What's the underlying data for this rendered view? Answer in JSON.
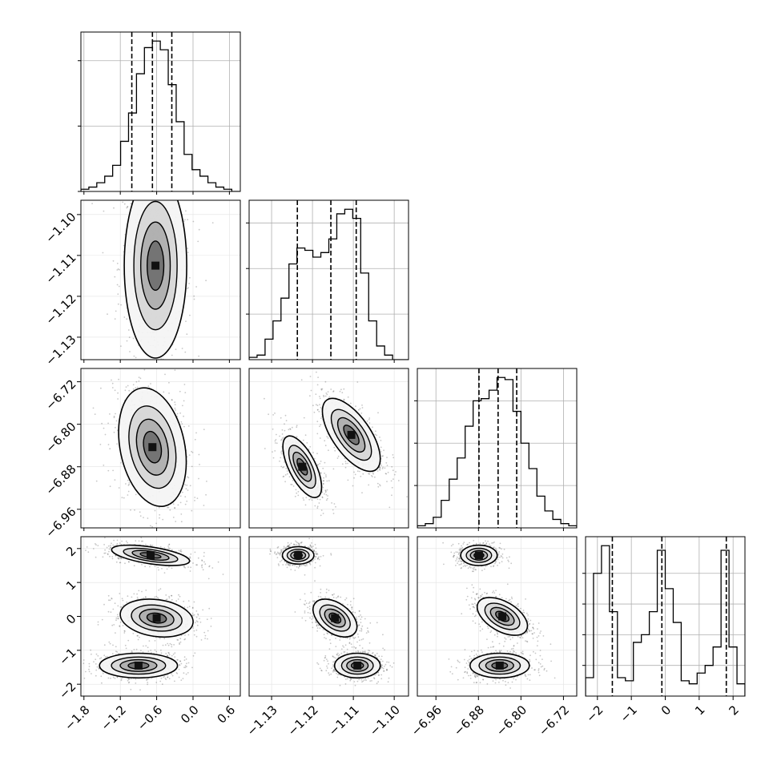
{
  "chart_data": {
    "type": "corner",
    "colors": {
      "line": "#000000",
      "grid": "#b0b0b0",
      "density": "#000000",
      "background": "#ffffff"
    },
    "grid": true,
    "parameters": [
      {
        "ticks": [
          -1.8,
          -1.2,
          -0.6,
          0.0,
          0.6
        ],
        "tick_labels": [
          "−1.8",
          "−1.2",
          "−0.6",
          "0.0",
          "0.6"
        ],
        "range": [
          -1.85,
          0.78
        ],
        "quantiles": [
          -1.01,
          -0.67,
          -0.35
        ],
        "histogram": {
          "edges_start": -1.85,
          "bin_width": 0.131,
          "counts": [
            1,
            2,
            4,
            7,
            12,
            23,
            36,
            54,
            66,
            69,
            65,
            49,
            32,
            17,
            10,
            7,
            4,
            2,
            1,
            0
          ],
          "hist_ticks": [
            0,
            30,
            60
          ]
        }
      },
      {
        "ticks": [
          -1.13,
          -1.12,
          -1.11,
          -1.1
        ],
        "tick_labels": [
          "−1.13",
          "−1.12",
          "−1.11",
          "−1.10"
        ],
        "range": [
          -1.1355,
          -1.0965
        ],
        "quantiles": [
          -1.1237,
          -1.1155,
          -1.1093
        ],
        "histogram": {
          "edges_start": -1.1355,
          "bin_width": 0.00195,
          "counts": [
            1,
            2,
            9,
            17,
            27,
            42,
            49,
            48,
            45,
            47,
            53,
            64,
            66,
            62,
            38,
            17,
            6,
            2,
            0,
            0
          ],
          "hist_ticks": [
            20,
            40,
            60
          ]
        }
      },
      {
        "ticks": [
          -6.96,
          -6.88,
          -6.8,
          -6.72
        ],
        "tick_labels": [
          "−6.96",
          "−6.88",
          "−6.80",
          "−6.72"
        ],
        "range": [
          -6.995,
          -6.695
        ],
        "quantiles": [
          -6.879,
          -6.843,
          -6.808
        ],
        "histogram": {
          "edges_start": -6.995,
          "bin_width": 0.015,
          "counts": [
            1,
            2,
            5,
            13,
            23,
            33,
            48,
            60,
            61,
            65,
            71,
            70,
            55,
            40,
            28,
            15,
            8,
            4,
            2,
            1
          ],
          "hist_ticks": [
            20,
            40,
            60
          ]
        }
      },
      {
        "ticks": [
          -2,
          -1,
          0,
          1,
          2
        ],
        "tick_labels": [
          "−2",
          "−1",
          "0",
          "1",
          "2"
        ],
        "range": [
          -2.35,
          2.35
        ],
        "quantiles": [
          -1.56,
          -0.1,
          1.8
        ],
        "histogram": {
          "edges_start": -2.35,
          "bin_width": 0.235,
          "counts": [
            12,
            80,
            98,
            55,
            12,
            10,
            35,
            40,
            55,
            95,
            70,
            48,
            10,
            8,
            15,
            20,
            32,
            95,
            32,
            8
          ],
          "hist_ticks": [
            20,
            40,
            60,
            80
          ]
        }
      }
    ],
    "pairs": [
      {
        "row": 1,
        "col": 0,
        "blobs": [
          {
            "cx": -0.62,
            "cy": -1.1125,
            "sx": 0.24,
            "sy": 0.0068,
            "rho": 0.0,
            "elong": 1.55
          }
        ]
      },
      {
        "row": 2,
        "col": 0,
        "blobs": [
          {
            "cx": -0.67,
            "cy": -6.843,
            "sx": 0.26,
            "sy": 0.052,
            "rho": -0.25
          }
        ]
      },
      {
        "row": 2,
        "col": 1,
        "blobs": [
          {
            "cx": -1.1225,
            "cy": -6.88,
            "sx": 0.0022,
            "sy": 0.027,
            "rho": -0.65
          },
          {
            "cx": -1.1105,
            "cy": -6.82,
            "sx": 0.0033,
            "sy": 0.032,
            "rho": -0.65
          }
        ]
      },
      {
        "row": 3,
        "col": 0,
        "blobs": [
          {
            "cx": -0.7,
            "cy": 1.8,
            "sx": 0.3,
            "sy": 0.14,
            "rho": -0.55
          },
          {
            "cx": -0.6,
            "cy": -0.05,
            "sx": 0.28,
            "sy": 0.26,
            "rho": -0.2
          },
          {
            "cx": -0.9,
            "cy": -1.45,
            "sx": 0.3,
            "sy": 0.17,
            "rho": 0.0
          }
        ]
      },
      {
        "row": 3,
        "col": 1,
        "blobs": [
          {
            "cx": -1.1235,
            "cy": 1.8,
            "sx": 0.0018,
            "sy": 0.12,
            "rho": 0.0
          },
          {
            "cx": -1.1145,
            "cy": -0.05,
            "sx": 0.0025,
            "sy": 0.26,
            "rho": -0.45
          },
          {
            "cx": -1.109,
            "cy": -1.45,
            "sx": 0.0026,
            "sy": 0.17,
            "rho": 0.0
          }
        ]
      },
      {
        "row": 3,
        "col": 2,
        "blobs": [
          {
            "cx": -6.879,
            "cy": 1.8,
            "sx": 0.016,
            "sy": 0.14,
            "rho": 0.0
          },
          {
            "cx": -6.835,
            "cy": 0.0,
            "sx": 0.022,
            "sy": 0.26,
            "rho": -0.5
          },
          {
            "cx": -6.84,
            "cy": -1.45,
            "sx": 0.026,
            "sy": 0.17,
            "rho": 0.0
          }
        ]
      }
    ]
  }
}
